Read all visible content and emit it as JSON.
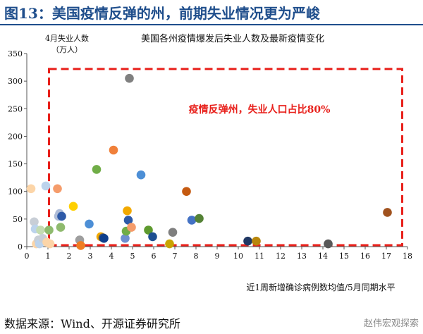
{
  "header": {
    "title": "图13：美国疫情反弹的州，前期失业情况更为严峻"
  },
  "chart_data": {
    "type": "scatter",
    "title": "美国各州疫情爆发后失业人数及最新疫情变化",
    "ylabel_line1": "4月失业人数",
    "ylabel_line2": "（万人）",
    "xlabel": "近1周新增确诊病例数均值/5月同期水平",
    "xlim": [
      0,
      18
    ],
    "ylim": [
      0,
      350
    ],
    "xticks": [
      0,
      1,
      2,
      3,
      4,
      5,
      6,
      7,
      8,
      9,
      10,
      11,
      12,
      13,
      14,
      15,
      16,
      17,
      18
    ],
    "yticks": [
      0,
      50,
      100,
      150,
      200,
      250,
      300,
      350
    ],
    "grid": false,
    "annotation": "疫情反弹州，失业人口占比80%",
    "highlight_region": {
      "x_range": [
        1.05,
        17.75
      ],
      "y_range": [
        0,
        322
      ],
      "style": "dashed",
      "color": "#e8201b"
    },
    "points": [
      {
        "x": 0.2,
        "y": 105,
        "color": "#fcd5a8"
      },
      {
        "x": 0.35,
        "y": 45,
        "color": "#c8ced6"
      },
      {
        "x": 0.4,
        "y": 32,
        "color": "#bcd3ec"
      },
      {
        "x": 0.45,
        "y": 5,
        "color": "#fcd5a8"
      },
      {
        "x": 0.55,
        "y": 12,
        "color": "#c8ced6"
      },
      {
        "x": 0.6,
        "y": 5,
        "color": "#bcd3ec"
      },
      {
        "x": 0.65,
        "y": 30,
        "color": "#c3dbb1"
      },
      {
        "x": 0.75,
        "y": 15,
        "color": "#c8ced6"
      },
      {
        "x": 0.9,
        "y": 110,
        "color": "#bcd3ec"
      },
      {
        "x": 0.95,
        "y": 8,
        "color": "#fcd5a8"
      },
      {
        "x": 1.05,
        "y": 30,
        "color": "#8fba6e"
      },
      {
        "x": 1.1,
        "y": 5,
        "color": "#fcd5a8"
      },
      {
        "x": 1.45,
        "y": 105,
        "color": "#f59c6b"
      },
      {
        "x": 1.5,
        "y": 55,
        "color": "#aebcd8"
      },
      {
        "x": 1.55,
        "y": 60,
        "color": "#aebcd8"
      },
      {
        "x": 1.6,
        "y": 35,
        "color": "#8fba6e"
      },
      {
        "x": 1.65,
        "y": 55,
        "color": "#2e5aa8"
      },
      {
        "x": 2.2,
        "y": 73,
        "color": "#ffd000"
      },
      {
        "x": 2.5,
        "y": 12,
        "color": "#9e9e9e"
      },
      {
        "x": 2.55,
        "y": 2,
        "color": "#ef7d22"
      },
      {
        "x": 2.95,
        "y": 41,
        "color": "#4d8fd6"
      },
      {
        "x": 3.3,
        "y": 140,
        "color": "#70ad47"
      },
      {
        "x": 3.5,
        "y": 18,
        "color": "#f2a900"
      },
      {
        "x": 3.6,
        "y": 16,
        "color": "#5a5a5a"
      },
      {
        "x": 3.65,
        "y": 15,
        "color": "#0e3f8c"
      },
      {
        "x": 4.1,
        "y": 175,
        "color": "#f0803a"
      },
      {
        "x": 4.65,
        "y": 15,
        "color": "#6d8fd0"
      },
      {
        "x": 4.7,
        "y": 28,
        "color": "#70ad47"
      },
      {
        "x": 4.75,
        "y": 65,
        "color": "#f2a900"
      },
      {
        "x": 4.8,
        "y": 48,
        "color": "#2e5aa8"
      },
      {
        "x": 4.85,
        "y": 305,
        "color": "#808080"
      },
      {
        "x": 4.95,
        "y": 35,
        "color": "#f59c6b"
      },
      {
        "x": 5.4,
        "y": 130,
        "color": "#4d8fd6"
      },
      {
        "x": 5.75,
        "y": 30,
        "color": "#5e9a2e"
      },
      {
        "x": 5.95,
        "y": 18,
        "color": "#1d4f91"
      },
      {
        "x": 6.75,
        "y": 5,
        "color": "#c9a400"
      },
      {
        "x": 6.9,
        "y": 26,
        "color": "#7f7f7f"
      },
      {
        "x": 7.55,
        "y": 100,
        "color": "#c55a11"
      },
      {
        "x": 7.8,
        "y": 48,
        "color": "#4472c4"
      },
      {
        "x": 8.15,
        "y": 51,
        "color": "#548235"
      },
      {
        "x": 10.45,
        "y": 10,
        "color": "#203864"
      },
      {
        "x": 10.85,
        "y": 10,
        "color": "#b8860b"
      },
      {
        "x": 14.25,
        "y": 5,
        "color": "#595959"
      },
      {
        "x": 17.05,
        "y": 62,
        "color": "#a0521e"
      }
    ]
  },
  "footer": {
    "source": "数据来源：Wind、开源证券研究所",
    "watermark": "赵伟宏观探索"
  }
}
